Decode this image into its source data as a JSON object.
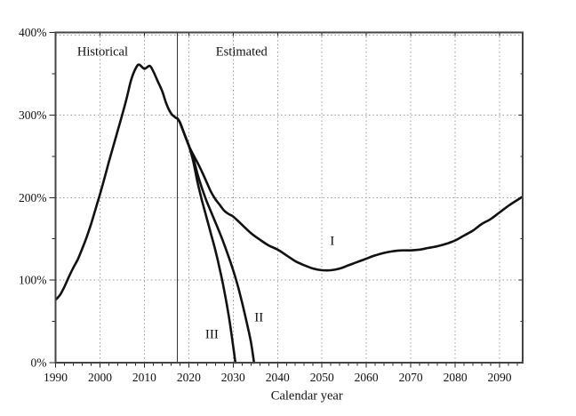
{
  "figure": {
    "background": "#ffffff",
    "border_color": "#444444",
    "grid_color": "#9a9a9a",
    "curve_color": "#111111",
    "divider_color": "#333333",
    "text_color": "#111111"
  },
  "chart_data": {
    "type": "line",
    "title": "",
    "xlabel": "Calendar year",
    "ylabel": "",
    "xlim": [
      1990,
      2095.2
    ],
    "ylim": [
      0,
      400
    ],
    "x_ticks": [
      1990,
      2000,
      2010,
      2020,
      2030,
      2040,
      2050,
      2060,
      2070,
      2080,
      2090
    ],
    "x_minor_tick_step": 2,
    "y_ticks": [
      0,
      100,
      200,
      300,
      400
    ],
    "y_tick_labels": [
      "0%",
      "100%",
      "200%",
      "300%",
      "400%"
    ],
    "y_minor_tick_step": 50,
    "grid": "dotted",
    "legend_position": "none",
    "divider_x": 2017.4,
    "annotations": [
      {
        "text": "Historical",
        "x": 2000.6,
        "y": 376,
        "style": "zone"
      },
      {
        "text": "Estimated",
        "x": 2031.9,
        "y": 376,
        "style": "zone"
      },
      {
        "text": "I",
        "x": 2052.3,
        "y": 146,
        "style": "roman"
      },
      {
        "text": "II",
        "x": 2035.8,
        "y": 54,
        "style": "roman"
      },
      {
        "text": "III",
        "x": 2025.2,
        "y": 33,
        "style": "roman"
      }
    ],
    "series": [
      {
        "name": "Historical",
        "points": [
          [
            1990,
            76
          ],
          [
            1991,
            82
          ],
          [
            1992,
            92
          ],
          [
            1993,
            104
          ],
          [
            1994,
            115
          ],
          [
            1995,
            125
          ],
          [
            1996,
            138
          ],
          [
            1997,
            152
          ],
          [
            1998,
            168
          ],
          [
            1999,
            186
          ],
          [
            2000,
            204
          ],
          [
            2001,
            223
          ],
          [
            2002,
            243
          ],
          [
            2003,
            262
          ],
          [
            2004,
            281
          ],
          [
            2005,
            300
          ],
          [
            2006,
            320
          ],
          [
            2007,
            342
          ],
          [
            2008,
            356
          ],
          [
            2008.8,
            361
          ],
          [
            2010,
            356
          ],
          [
            2011.2,
            359.5
          ],
          [
            2012,
            353
          ],
          [
            2013,
            341
          ],
          [
            2014,
            329
          ],
          [
            2015,
            313
          ],
          [
            2016,
            302
          ],
          [
            2017,
            297
          ],
          [
            2017.4,
            296
          ]
        ]
      },
      {
        "name": "I",
        "points": [
          [
            2017.4,
            296
          ],
          [
            2018,
            291
          ],
          [
            2019,
            277
          ],
          [
            2020,
            263
          ],
          [
            2021,
            252
          ],
          [
            2022,
            242
          ],
          [
            2023,
            231
          ],
          [
            2024,
            219
          ],
          [
            2025,
            207
          ],
          [
            2026,
            198
          ],
          [
            2027,
            191
          ],
          [
            2028,
            184
          ],
          [
            2029,
            180
          ],
          [
            2030,
            177
          ],
          [
            2032,
            167
          ],
          [
            2034,
            157
          ],
          [
            2036,
            149
          ],
          [
            2038,
            142
          ],
          [
            2040,
            137
          ],
          [
            2042,
            130
          ],
          [
            2044,
            123
          ],
          [
            2046,
            118
          ],
          [
            2048,
            114
          ],
          [
            2050,
            112
          ],
          [
            2052,
            112
          ],
          [
            2054,
            114
          ],
          [
            2056,
            118
          ],
          [
            2058,
            122
          ],
          [
            2060,
            126
          ],
          [
            2062,
            130
          ],
          [
            2064,
            133
          ],
          [
            2066,
            135
          ],
          [
            2068,
            136
          ],
          [
            2070,
            136
          ],
          [
            2072,
            137
          ],
          [
            2074,
            139
          ],
          [
            2076,
            141
          ],
          [
            2078,
            144
          ],
          [
            2080,
            148
          ],
          [
            2082,
            154
          ],
          [
            2084,
            160
          ],
          [
            2086,
            168
          ],
          [
            2088,
            174
          ],
          [
            2090,
            182
          ],
          [
            2092,
            190
          ],
          [
            2094,
            197
          ],
          [
            2095.2,
            201
          ]
        ]
      },
      {
        "name": "II",
        "points": [
          [
            2017.4,
            296
          ],
          [
            2018,
            291
          ],
          [
            2019,
            277
          ],
          [
            2020,
            263
          ],
          [
            2021,
            248
          ],
          [
            2022,
            228
          ],
          [
            2023,
            211
          ],
          [
            2024,
            196
          ],
          [
            2025,
            183
          ],
          [
            2026,
            170
          ],
          [
            2027,
            157
          ],
          [
            2028,
            143
          ],
          [
            2029,
            128
          ],
          [
            2030,
            112
          ],
          [
            2031,
            94
          ],
          [
            2032,
            73
          ],
          [
            2033,
            50
          ],
          [
            2034,
            25
          ],
          [
            2034.7,
            0
          ]
        ]
      },
      {
        "name": "III",
        "points": [
          [
            2017.4,
            296
          ],
          [
            2018,
            291
          ],
          [
            2019,
            277
          ],
          [
            2020,
            263
          ],
          [
            2021,
            244
          ],
          [
            2022,
            218
          ],
          [
            2023,
            196
          ],
          [
            2024,
            176
          ],
          [
            2025,
            156
          ],
          [
            2026,
            136
          ],
          [
            2027,
            113
          ],
          [
            2028,
            87
          ],
          [
            2029,
            57
          ],
          [
            2030,
            20
          ],
          [
            2030.5,
            0
          ]
        ]
      }
    ]
  }
}
